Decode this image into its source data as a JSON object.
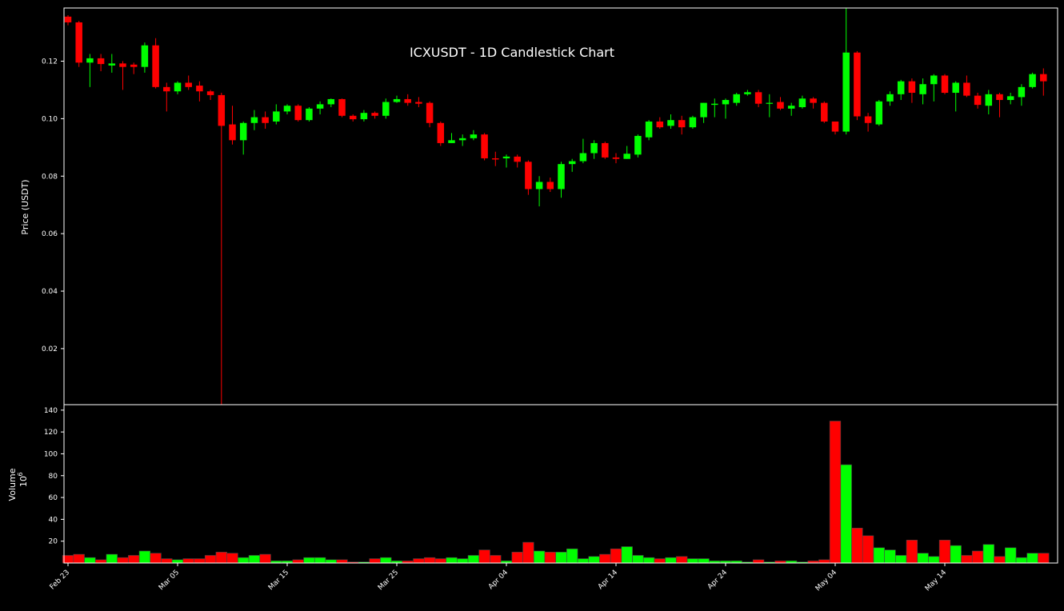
{
  "chart_data": {
    "type": "candlestick",
    "title": "ICXUSDT - 1D Candlestick Chart",
    "ylabel": "Price (USDT)",
    "volume_label": "Volume",
    "volume_unit_base": "10",
    "volume_unit_exp": "6",
    "price_ylim": [
      0.0005,
      0.1385
    ],
    "volume_ylim": [
      0,
      145
    ],
    "price_ticks": [
      "0.02",
      "0.04",
      "0.06",
      "0.08",
      "0.10",
      "0.12"
    ],
    "price_tick_values": [
      0.02,
      0.04,
      0.06,
      0.08,
      0.1,
      0.12
    ],
    "volume_ticks": [
      "20",
      "40",
      "60",
      "80",
      "100",
      "120",
      "140"
    ],
    "volume_tick_values": [
      20,
      40,
      60,
      80,
      100,
      120,
      140
    ],
    "x_ticks": [
      {
        "label": "Feb 23",
        "index": 0
      },
      {
        "label": "Mar 05",
        "index": 10
      },
      {
        "label": "Mar 15",
        "index": 20
      },
      {
        "label": "Mar 25",
        "index": 30
      },
      {
        "label": "Apr 04",
        "index": 40
      },
      {
        "label": "Apr 14",
        "index": 50
      },
      {
        "label": "Apr 24",
        "index": 60
      },
      {
        "label": "May 04",
        "index": 70
      },
      {
        "label": "May 14",
        "index": 80
      }
    ],
    "colors": {
      "up": "#00ff00",
      "down": "#ff0000",
      "background": "#000000",
      "text": "#ffffff"
    },
    "candles": [
      {
        "date": "Feb 23",
        "o": 0.1355,
        "h": 0.136,
        "l": 0.1325,
        "c": 0.1335,
        "v": 7
      },
      {
        "date": "Feb 24",
        "o": 0.1335,
        "h": 0.134,
        "l": 0.118,
        "c": 0.1195,
        "v": 8
      },
      {
        "date": "Feb 25",
        "o": 0.1195,
        "h": 0.1225,
        "l": 0.111,
        "c": 0.121,
        "v": 5
      },
      {
        "date": "Feb 26",
        "o": 0.121,
        "h": 0.1225,
        "l": 0.1165,
        "c": 0.119,
        "v": 3
      },
      {
        "date": "Feb 27",
        "o": 0.1185,
        "h": 0.1225,
        "l": 0.116,
        "c": 0.1192,
        "v": 8
      },
      {
        "date": "Feb 28",
        "o": 0.1192,
        "h": 0.12,
        "l": 0.11,
        "c": 0.118,
        "v": 5
      },
      {
        "date": "Mar 01",
        "o": 0.1188,
        "h": 0.1195,
        "l": 0.1155,
        "c": 0.118,
        "v": 7
      },
      {
        "date": "Mar 02",
        "o": 0.118,
        "h": 0.1265,
        "l": 0.116,
        "c": 0.1255,
        "v": 11
      },
      {
        "date": "Mar 03",
        "o": 0.1255,
        "h": 0.128,
        "l": 0.1105,
        "c": 0.111,
        "v": 9
      },
      {
        "date": "Mar 04",
        "o": 0.111,
        "h": 0.1125,
        "l": 0.1025,
        "c": 0.1095,
        "v": 4
      },
      {
        "date": "Mar 05",
        "o": 0.1095,
        "h": 0.113,
        "l": 0.1085,
        "c": 0.1125,
        "v": 3
      },
      {
        "date": "Mar 06",
        "o": 0.1125,
        "h": 0.115,
        "l": 0.11,
        "c": 0.111,
        "v": 4
      },
      {
        "date": "Mar 07",
        "o": 0.1115,
        "h": 0.113,
        "l": 0.106,
        "c": 0.1095,
        "v": 4
      },
      {
        "date": "Mar 08",
        "o": 0.1095,
        "h": 0.11,
        "l": 0.1065,
        "c": 0.1082,
        "v": 7
      },
      {
        "date": "Mar 09",
        "o": 0.1082,
        "h": 0.109,
        "l": 0.0005,
        "c": 0.0975,
        "v": 10
      },
      {
        "date": "Mar 10",
        "o": 0.098,
        "h": 0.1045,
        "l": 0.091,
        "c": 0.0925,
        "v": 9
      },
      {
        "date": "Mar 11",
        "o": 0.0925,
        "h": 0.099,
        "l": 0.0875,
        "c": 0.0985,
        "v": 5
      },
      {
        "date": "Mar 12",
        "o": 0.0985,
        "h": 0.103,
        "l": 0.096,
        "c": 0.1005,
        "v": 7
      },
      {
        "date": "Mar 13",
        "o": 0.1005,
        "h": 0.1025,
        "l": 0.0965,
        "c": 0.0985,
        "v": 8
      },
      {
        "date": "Mar 14",
        "o": 0.099,
        "h": 0.105,
        "l": 0.098,
        "c": 0.1025,
        "v": 2
      },
      {
        "date": "Mar 15",
        "o": 0.1025,
        "h": 0.105,
        "l": 0.1015,
        "c": 0.1045,
        "v": 2
      },
      {
        "date": "Mar 16",
        "o": 0.1045,
        "h": 0.105,
        "l": 0.099,
        "c": 0.0995,
        "v": 3
      },
      {
        "date": "Mar 17",
        "o": 0.0995,
        "h": 0.104,
        "l": 0.099,
        "c": 0.1035,
        "v": 5
      },
      {
        "date": "Mar 18",
        "o": 0.1035,
        "h": 0.106,
        "l": 0.1015,
        "c": 0.105,
        "v": 5
      },
      {
        "date": "Mar 19",
        "o": 0.105,
        "h": 0.107,
        "l": 0.104,
        "c": 0.1068,
        "v": 3
      },
      {
        "date": "Mar 20",
        "o": 0.1068,
        "h": 0.107,
        "l": 0.1005,
        "c": 0.101,
        "v": 3
      },
      {
        "date": "Mar 21",
        "o": 0.101,
        "h": 0.1015,
        "l": 0.099,
        "c": 0.0998,
        "v": 1
      },
      {
        "date": "Mar 22",
        "o": 0.0998,
        "h": 0.103,
        "l": 0.099,
        "c": 0.102,
        "v": 1
      },
      {
        "date": "Mar 23",
        "o": 0.102,
        "h": 0.1025,
        "l": 0.1,
        "c": 0.101,
        "v": 4
      },
      {
        "date": "Mar 24",
        "o": 0.101,
        "h": 0.107,
        "l": 0.1,
        "c": 0.1058,
        "v": 5
      },
      {
        "date": "Mar 25",
        "o": 0.1058,
        "h": 0.108,
        "l": 0.1055,
        "c": 0.1068,
        "v": 2
      },
      {
        "date": "Mar 26",
        "o": 0.1068,
        "h": 0.1085,
        "l": 0.1045,
        "c": 0.1055,
        "v": 2
      },
      {
        "date": "Mar 27",
        "o": 0.1058,
        "h": 0.1075,
        "l": 0.104,
        "c": 0.1052,
        "v": 4
      },
      {
        "date": "Mar 28",
        "o": 0.1055,
        "h": 0.106,
        "l": 0.097,
        "c": 0.0985,
        "v": 5
      },
      {
        "date": "Mar 29",
        "o": 0.0985,
        "h": 0.099,
        "l": 0.0905,
        "c": 0.0915,
        "v": 4
      },
      {
        "date": "Mar 30",
        "o": 0.0915,
        "h": 0.095,
        "l": 0.0915,
        "c": 0.0925,
        "v": 5
      },
      {
        "date": "Mar 31",
        "o": 0.0925,
        "h": 0.0945,
        "l": 0.0905,
        "c": 0.0932,
        "v": 4
      },
      {
        "date": "Apr 01",
        "o": 0.0932,
        "h": 0.096,
        "l": 0.0925,
        "c": 0.0945,
        "v": 7
      },
      {
        "date": "Apr 02",
        "o": 0.0945,
        "h": 0.095,
        "l": 0.0855,
        "c": 0.0862,
        "v": 12
      },
      {
        "date": "Apr 03",
        "o": 0.0862,
        "h": 0.0885,
        "l": 0.0835,
        "c": 0.0858,
        "v": 7
      },
      {
        "date": "Apr 04",
        "o": 0.0862,
        "h": 0.0875,
        "l": 0.083,
        "c": 0.0868,
        "v": 2
      },
      {
        "date": "Apr 05",
        "o": 0.0868,
        "h": 0.0875,
        "l": 0.083,
        "c": 0.085,
        "v": 10
      },
      {
        "date": "Apr 06",
        "o": 0.085,
        "h": 0.0855,
        "l": 0.0735,
        "c": 0.0755,
        "v": 19
      },
      {
        "date": "Apr 07",
        "o": 0.0755,
        "h": 0.08,
        "l": 0.0695,
        "c": 0.078,
        "v": 11
      },
      {
        "date": "Apr 08",
        "o": 0.078,
        "h": 0.0795,
        "l": 0.0745,
        "c": 0.0755,
        "v": 10
      },
      {
        "date": "Apr 09",
        "o": 0.0755,
        "h": 0.085,
        "l": 0.0725,
        "c": 0.0842,
        "v": 10
      },
      {
        "date": "Apr 10",
        "o": 0.0842,
        "h": 0.086,
        "l": 0.0815,
        "c": 0.0852,
        "v": 13
      },
      {
        "date": "Apr 11",
        "o": 0.0852,
        "h": 0.093,
        "l": 0.0845,
        "c": 0.088,
        "v": 4
      },
      {
        "date": "Apr 12",
        "o": 0.088,
        "h": 0.0925,
        "l": 0.086,
        "c": 0.0915,
        "v": 6
      },
      {
        "date": "Apr 13",
        "o": 0.0915,
        "h": 0.092,
        "l": 0.086,
        "c": 0.0865,
        "v": 8
      },
      {
        "date": "Apr 14",
        "o": 0.0865,
        "h": 0.088,
        "l": 0.0845,
        "c": 0.086,
        "v": 13
      },
      {
        "date": "Apr 15",
        "o": 0.086,
        "h": 0.0905,
        "l": 0.086,
        "c": 0.0878,
        "v": 15
      },
      {
        "date": "Apr 16",
        "o": 0.0875,
        "h": 0.0945,
        "l": 0.0865,
        "c": 0.094,
        "v": 7
      },
      {
        "date": "Apr 17",
        "o": 0.0935,
        "h": 0.0995,
        "l": 0.0925,
        "c": 0.099,
        "v": 5
      },
      {
        "date": "Apr 18",
        "o": 0.099,
        "h": 0.1005,
        "l": 0.0965,
        "c": 0.097,
        "v": 4
      },
      {
        "date": "Apr 19",
        "o": 0.0975,
        "h": 0.1015,
        "l": 0.0965,
        "c": 0.0995,
        "v": 5
      },
      {
        "date": "Apr 20",
        "o": 0.0995,
        "h": 0.101,
        "l": 0.0945,
        "c": 0.097,
        "v": 6
      },
      {
        "date": "Apr 21",
        "o": 0.097,
        "h": 0.101,
        "l": 0.0965,
        "c": 0.1005,
        "v": 4
      },
      {
        "date": "Apr 22",
        "o": 0.1005,
        "h": 0.1055,
        "l": 0.0985,
        "c": 0.1055,
        "v": 4
      },
      {
        "date": "Apr 23",
        "o": 0.1048,
        "h": 0.107,
        "l": 0.1005,
        "c": 0.1052,
        "v": 2
      },
      {
        "date": "Apr 24",
        "o": 0.105,
        "h": 0.107,
        "l": 0.1,
        "c": 0.1065,
        "v": 2
      },
      {
        "date": "Apr 25",
        "o": 0.1055,
        "h": 0.109,
        "l": 0.1045,
        "c": 0.1085,
        "v": 2
      },
      {
        "date": "Apr 26",
        "o": 0.1085,
        "h": 0.11,
        "l": 0.108,
        "c": 0.1092,
        "v": 1
      },
      {
        "date": "Apr 27",
        "o": 0.1092,
        "h": 0.11,
        "l": 0.104,
        "c": 0.1052,
        "v": 3
      },
      {
        "date": "Apr 28",
        "o": 0.1052,
        "h": 0.1085,
        "l": 0.1005,
        "c": 0.1055,
        "v": 1
      },
      {
        "date": "Apr 29",
        "o": 0.1058,
        "h": 0.1075,
        "l": 0.103,
        "c": 0.1035,
        "v": 2
      },
      {
        "date": "Apr 30",
        "o": 0.1035,
        "h": 0.1055,
        "l": 0.101,
        "c": 0.1045,
        "v": 2
      },
      {
        "date": "May 01",
        "o": 0.104,
        "h": 0.108,
        "l": 0.1035,
        "c": 0.107,
        "v": 1
      },
      {
        "date": "May 02",
        "o": 0.107,
        "h": 0.1075,
        "l": 0.1035,
        "c": 0.1055,
        "v": 2
      },
      {
        "date": "May 03",
        "o": 0.1055,
        "h": 0.106,
        "l": 0.0985,
        "c": 0.099,
        "v": 3
      },
      {
        "date": "May 04",
        "o": 0.099,
        "h": 0.099,
        "l": 0.0945,
        "c": 0.0955,
        "v": 130
      },
      {
        "date": "May 05",
        "o": 0.0955,
        "h": 0.1385,
        "l": 0.0945,
        "c": 0.123,
        "v": 90
      },
      {
        "date": "May 06",
        "o": 0.123,
        "h": 0.1235,
        "l": 0.0995,
        "c": 0.1008,
        "v": 32
      },
      {
        "date": "May 07",
        "o": 0.1008,
        "h": 0.102,
        "l": 0.0955,
        "c": 0.0985,
        "v": 25
      },
      {
        "date": "May 08",
        "o": 0.098,
        "h": 0.1065,
        "l": 0.0975,
        "c": 0.106,
        "v": 14
      },
      {
        "date": "May 09",
        "o": 0.106,
        "h": 0.1095,
        "l": 0.1045,
        "c": 0.1085,
        "v": 12
      },
      {
        "date": "May 10",
        "o": 0.1085,
        "h": 0.1135,
        "l": 0.1065,
        "c": 0.113,
        "v": 7
      },
      {
        "date": "May 11",
        "o": 0.113,
        "h": 0.114,
        "l": 0.1055,
        "c": 0.109,
        "v": 21
      },
      {
        "date": "May 12",
        "o": 0.1085,
        "h": 0.114,
        "l": 0.105,
        "c": 0.112,
        "v": 9
      },
      {
        "date": "May 13",
        "o": 0.112,
        "h": 0.1155,
        "l": 0.106,
        "c": 0.115,
        "v": 6
      },
      {
        "date": "May 14",
        "o": 0.115,
        "h": 0.1155,
        "l": 0.1085,
        "c": 0.109,
        "v": 21
      },
      {
        "date": "May 15",
        "o": 0.109,
        "h": 0.113,
        "l": 0.1025,
        "c": 0.1125,
        "v": 16
      },
      {
        "date": "May 16",
        "o": 0.1125,
        "h": 0.115,
        "l": 0.1075,
        "c": 0.108,
        "v": 7
      },
      {
        "date": "May 17",
        "o": 0.108,
        "h": 0.109,
        "l": 0.1035,
        "c": 0.1048,
        "v": 11
      },
      {
        "date": "May 18",
        "o": 0.1045,
        "h": 0.11,
        "l": 0.1015,
        "c": 0.1085,
        "v": 17
      },
      {
        "date": "May 19",
        "o": 0.1085,
        "h": 0.109,
        "l": 0.1005,
        "c": 0.1065,
        "v": 6
      },
      {
        "date": "May 20",
        "o": 0.1065,
        "h": 0.109,
        "l": 0.105,
        "c": 0.1078,
        "v": 14
      },
      {
        "date": "May 21",
        "o": 0.1075,
        "h": 0.112,
        "l": 0.1045,
        "c": 0.111,
        "v": 5
      },
      {
        "date": "May 22",
        "o": 0.111,
        "h": 0.116,
        "l": 0.1105,
        "c": 0.1155,
        "v": 9
      },
      {
        "date": "May 23",
        "o": 0.1155,
        "h": 0.1175,
        "l": 0.108,
        "c": 0.113,
        "v": 9
      }
    ]
  }
}
